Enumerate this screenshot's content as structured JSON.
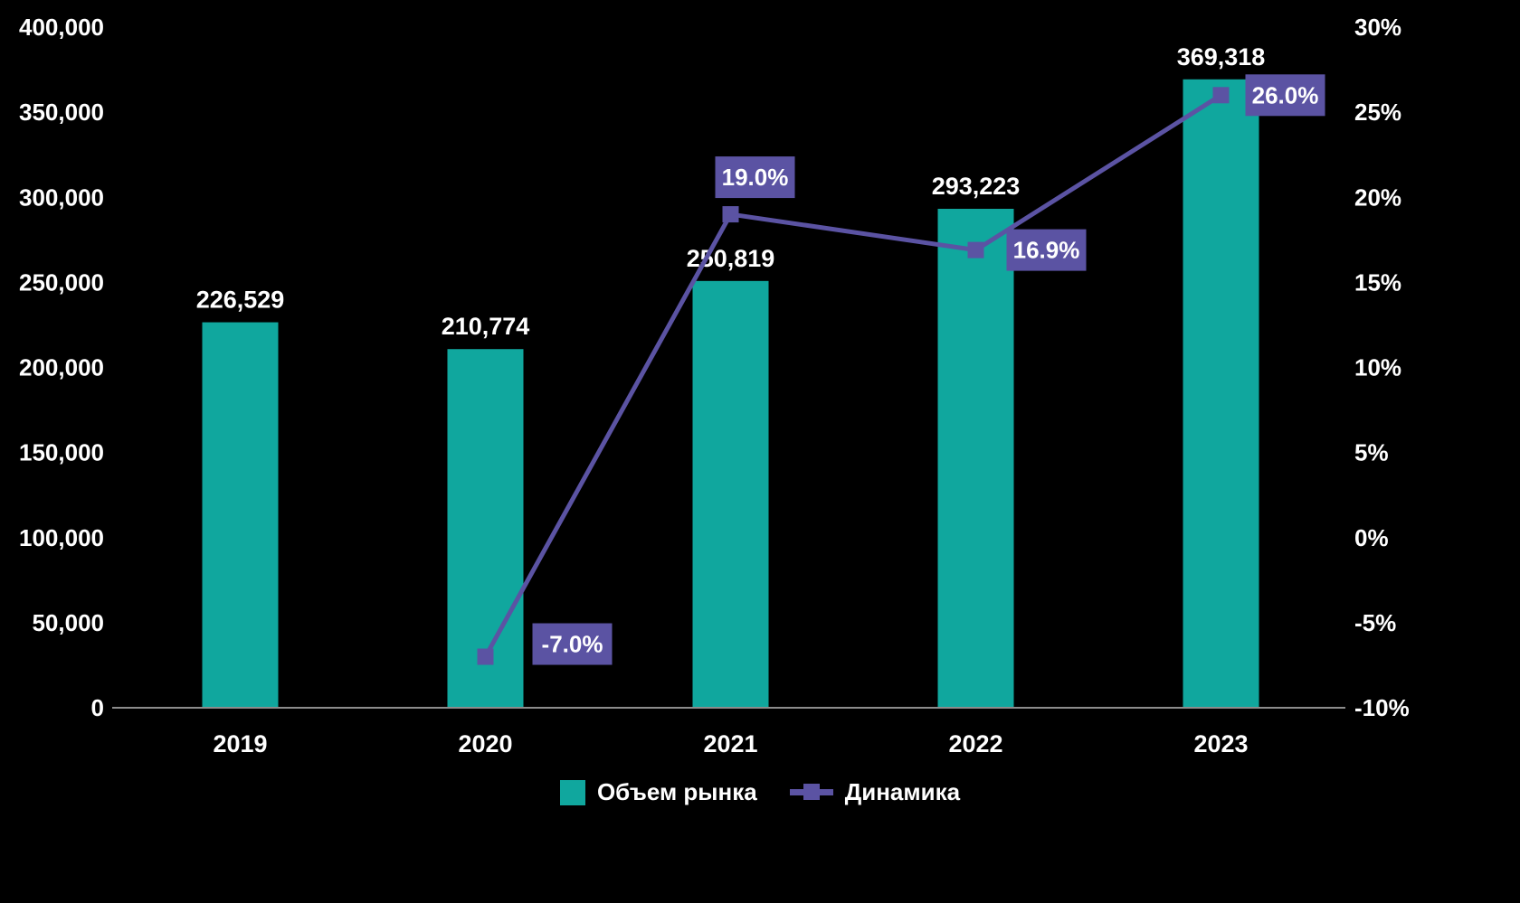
{
  "chart_data": {
    "type": "combo",
    "categories": [
      "2019",
      "2020",
      "2021",
      "2022",
      "2023"
    ],
    "series": [
      {
        "name": "Объем рынка",
        "type": "bar",
        "axis": "left",
        "color": "#10A79E",
        "values": [
          226529,
          210774,
          250819,
          293223,
          369318
        ],
        "labels": [
          "226,529",
          "210,774",
          "250,819",
          "293,223",
          "369,318"
        ]
      },
      {
        "name": "Динамика",
        "type": "line",
        "axis": "right",
        "color": "#5B53A3",
        "values": [
          null,
          -7.0,
          19.0,
          16.9,
          26.0
        ],
        "labels": [
          null,
          "-7.0%",
          "19.0%",
          "16.9%",
          "26.0%"
        ]
      }
    ],
    "left_axis": {
      "min": 0,
      "max": 400000,
      "step": 50000,
      "tick_labels": [
        "0",
        "50,000",
        "100,000",
        "150,000",
        "200,000",
        "250,000",
        "300,000",
        "350,000",
        "400,000"
      ]
    },
    "right_axis": {
      "min": -10,
      "max": 30,
      "step": 5,
      "tick_labels": [
        "-10%",
        "-5%",
        "0%",
        "5%",
        "10%",
        "15%",
        "20%",
        "25%",
        "30%"
      ]
    },
    "title": "",
    "xlabel": "",
    "ylabel": "",
    "grid": false,
    "legend_position": "bottom",
    "background": "#000000",
    "text_color": "#FFFFFF",
    "axis_line_color": "#8C8C8C"
  }
}
